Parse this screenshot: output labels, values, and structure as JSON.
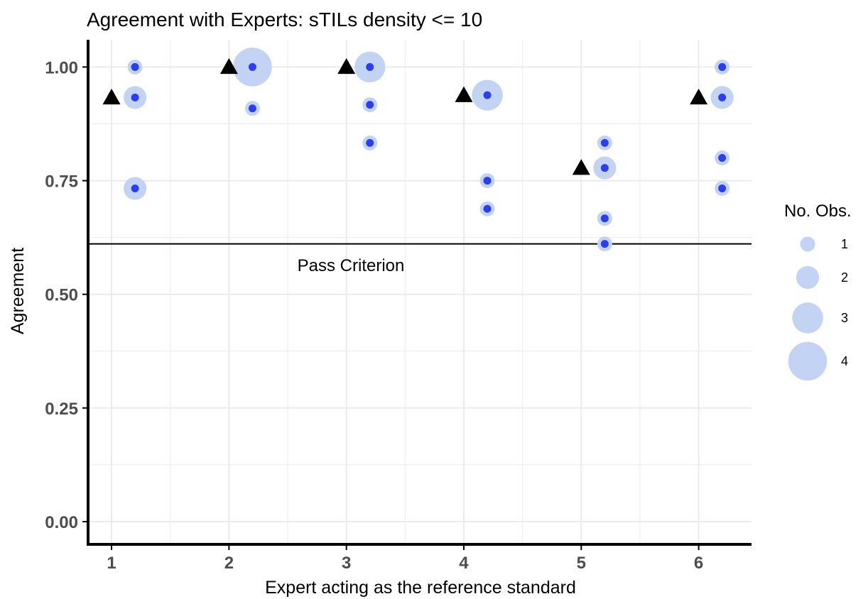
{
  "chart_data": {
    "type": "scatter",
    "title": "Agreement with Experts: sTILs density <= 10",
    "xlabel": "Expert acting as the reference standard",
    "ylabel": "Agreement",
    "xlim": [
      0.8,
      6.45
    ],
    "ylim": [
      -0.05,
      1.06
    ],
    "x_ticks": [
      "1",
      "2",
      "3",
      "4",
      "5",
      "6"
    ],
    "y_ticks": [
      "0.00",
      "0.25",
      "0.50",
      "0.75",
      "1.00"
    ],
    "y_tick_values": [
      0,
      0.25,
      0.5,
      0.75,
      1.0
    ],
    "grid": true,
    "reference_line": {
      "y": 0.611,
      "label": "Pass Criterion"
    },
    "series": [
      {
        "marker": "circle",
        "points": [
          {
            "x": 1.2,
            "y": 1.0,
            "n": 1
          },
          {
            "x": 1.2,
            "y": 0.933,
            "n": 2
          },
          {
            "x": 1.2,
            "y": 0.733,
            "n": 2
          },
          {
            "x": 2.2,
            "y": 1.0,
            "n": 4
          },
          {
            "x": 2.2,
            "y": 0.909,
            "n": 1
          },
          {
            "x": 3.2,
            "y": 1.0,
            "n": 3
          },
          {
            "x": 3.2,
            "y": 0.917,
            "n": 1
          },
          {
            "x": 3.2,
            "y": 0.833,
            "n": 1
          },
          {
            "x": 4.2,
            "y": 0.938,
            "n": 3
          },
          {
            "x": 4.2,
            "y": 0.75,
            "n": 1
          },
          {
            "x": 4.2,
            "y": 0.688,
            "n": 1
          },
          {
            "x": 5.2,
            "y": 0.833,
            "n": 1
          },
          {
            "x": 5.2,
            "y": 0.778,
            "n": 2
          },
          {
            "x": 5.2,
            "y": 0.667,
            "n": 1
          },
          {
            "x": 5.2,
            "y": 0.611,
            "n": 1
          },
          {
            "x": 6.2,
            "y": 1.0,
            "n": 1
          },
          {
            "x": 6.2,
            "y": 0.933,
            "n": 2
          },
          {
            "x": 6.2,
            "y": 0.8,
            "n": 1
          },
          {
            "x": 6.2,
            "y": 0.733,
            "n": 1
          }
        ]
      },
      {
        "marker": "triangle",
        "points": [
          {
            "x": 1,
            "y": 0.933
          },
          {
            "x": 2,
            "y": 1.0
          },
          {
            "x": 3,
            "y": 1.0
          },
          {
            "x": 4,
            "y": 0.938
          },
          {
            "x": 5,
            "y": 0.778
          },
          {
            "x": 6,
            "y": 0.933
          }
        ]
      }
    ],
    "legend": {
      "title": "No. Obs.",
      "position": "right",
      "entries": [
        {
          "label": "1",
          "n": 1
        },
        {
          "label": "2",
          "n": 2
        },
        {
          "label": "3",
          "n": 3
        },
        {
          "label": "4",
          "n": 4
        }
      ]
    },
    "colors": {
      "bubble": "#c3d3f4",
      "dot": "#2b3ff0",
      "triangle": "#000000",
      "grid": "#ebebeb",
      "axis": "#000000",
      "tick_text": "#4d4d4d"
    }
  }
}
